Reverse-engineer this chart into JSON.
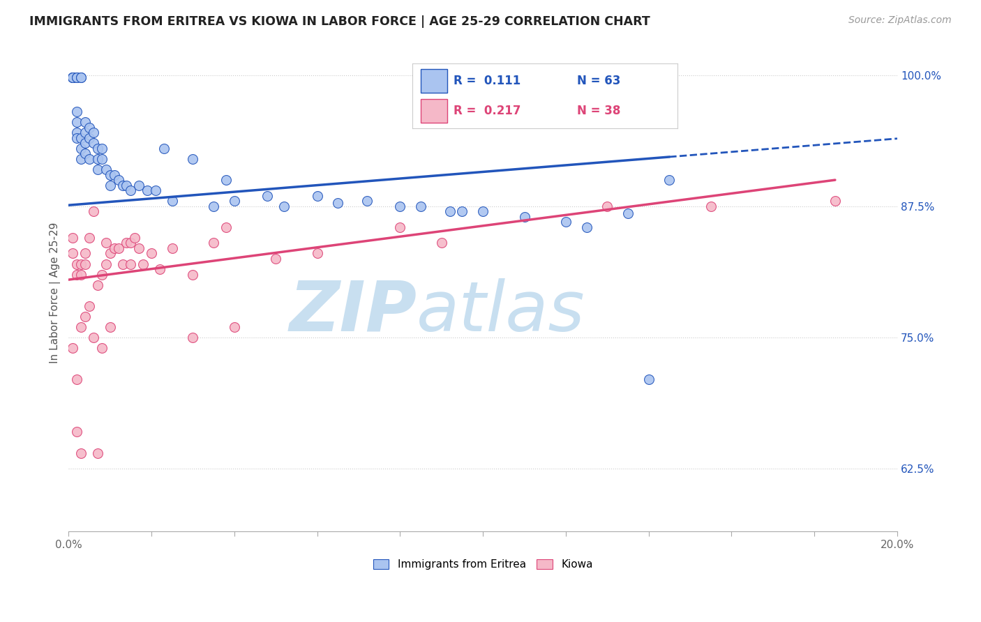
{
  "title": "IMMIGRANTS FROM ERITREA VS KIOWA IN LABOR FORCE | AGE 25-29 CORRELATION CHART",
  "source": "Source: ZipAtlas.com",
  "ylabel": "In Labor Force | Age 25-29",
  "xlim": [
    0.0,
    0.2
  ],
  "ylim": [
    0.565,
    1.02
  ],
  "xticks": [
    0.0,
    0.02,
    0.04,
    0.06,
    0.08,
    0.1,
    0.12,
    0.14,
    0.16,
    0.18,
    0.2
  ],
  "xticklabels": [
    "0.0%",
    "",
    "",
    "",
    "",
    "",
    "",
    "",
    "",
    "",
    "20.0%"
  ],
  "yticks": [
    0.625,
    0.75,
    0.875,
    1.0
  ],
  "yticklabels": [
    "62.5%",
    "75.0%",
    "87.5%",
    "100.0%"
  ],
  "color_eritrea": "#aac4f0",
  "color_kiowa": "#f5b8c8",
  "color_eritrea_line": "#2255bb",
  "color_kiowa_line": "#dd4477",
  "eritrea_x": [
    0.001,
    0.001,
    0.001,
    0.001,
    0.001,
    0.002,
    0.002,
    0.002,
    0.002,
    0.002,
    0.002,
    0.003,
    0.003,
    0.003,
    0.003,
    0.003,
    0.004,
    0.004,
    0.004,
    0.004,
    0.005,
    0.005,
    0.005,
    0.006,
    0.006,
    0.007,
    0.007,
    0.007,
    0.008,
    0.008,
    0.009,
    0.01,
    0.01,
    0.011,
    0.012,
    0.013,
    0.014,
    0.015,
    0.017,
    0.019,
    0.021,
    0.023,
    0.025,
    0.03,
    0.035,
    0.038,
    0.04,
    0.048,
    0.052,
    0.06,
    0.065,
    0.072,
    0.08,
    0.085,
    0.092,
    0.095,
    0.1,
    0.11,
    0.12,
    0.125,
    0.135,
    0.14,
    0.145
  ],
  "eritrea_y": [
    0.998,
    0.998,
    0.998,
    0.998,
    0.998,
    0.998,
    0.998,
    0.965,
    0.955,
    0.945,
    0.94,
    0.998,
    0.998,
    0.94,
    0.93,
    0.92,
    0.955,
    0.945,
    0.935,
    0.925,
    0.95,
    0.94,
    0.92,
    0.945,
    0.935,
    0.93,
    0.92,
    0.91,
    0.93,
    0.92,
    0.91,
    0.905,
    0.895,
    0.905,
    0.9,
    0.895,
    0.895,
    0.89,
    0.895,
    0.89,
    0.89,
    0.93,
    0.88,
    0.92,
    0.875,
    0.9,
    0.88,
    0.885,
    0.875,
    0.885,
    0.878,
    0.88,
    0.875,
    0.875,
    0.87,
    0.87,
    0.87,
    0.865,
    0.86,
    0.855,
    0.868,
    0.71,
    0.9
  ],
  "kiowa_x": [
    0.001,
    0.001,
    0.002,
    0.002,
    0.003,
    0.003,
    0.004,
    0.004,
    0.005,
    0.006,
    0.007,
    0.008,
    0.009,
    0.009,
    0.01,
    0.011,
    0.012,
    0.013,
    0.014,
    0.015,
    0.015,
    0.016,
    0.017,
    0.018,
    0.02,
    0.022,
    0.025,
    0.03,
    0.035,
    0.038,
    0.04,
    0.05,
    0.06,
    0.08,
    0.09,
    0.13,
    0.155,
    0.185
  ],
  "kiowa_y": [
    0.845,
    0.83,
    0.82,
    0.81,
    0.82,
    0.81,
    0.83,
    0.82,
    0.845,
    0.87,
    0.8,
    0.81,
    0.84,
    0.82,
    0.83,
    0.835,
    0.835,
    0.82,
    0.84,
    0.84,
    0.82,
    0.845,
    0.835,
    0.82,
    0.83,
    0.815,
    0.835,
    0.81,
    0.84,
    0.855,
    0.76,
    0.825,
    0.83,
    0.855,
    0.84,
    0.875,
    0.875,
    0.88
  ],
  "kiowa_low_x": [
    0.001,
    0.002,
    0.002,
    0.003,
    0.003,
    0.004,
    0.005,
    0.006,
    0.007,
    0.008,
    0.01,
    0.03
  ],
  "kiowa_low_y": [
    0.74,
    0.71,
    0.66,
    0.64,
    0.76,
    0.77,
    0.78,
    0.75,
    0.64,
    0.74,
    0.76,
    0.75
  ],
  "watermark_zip": "ZIP",
  "watermark_atlas": "atlas",
  "watermark_color_zip": "#c5dff0",
  "watermark_color_atlas": "#c5dff0",
  "background_color": "#ffffff"
}
